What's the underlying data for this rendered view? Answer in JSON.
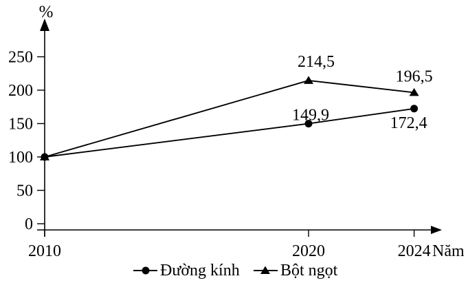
{
  "chart_data": {
    "type": "line",
    "title": "",
    "ylabel": "%",
    "xlabel": "Năm",
    "x": [
      2010,
      2020,
      2024
    ],
    "x_tick_labels": [
      "2010",
      "2020",
      "2024"
    ],
    "y_ticks": [
      0,
      50,
      100,
      150,
      200,
      250
    ],
    "ylim": [
      0,
      300
    ],
    "grid": false,
    "legend_position": "bottom",
    "series": [
      {
        "name": "Đường kính",
        "marker": "circle",
        "color": "#000000",
        "values": [
          100,
          149.9,
          172.4
        ],
        "point_labels": [
          {
            "x": 2020,
            "text": "149,9",
            "dx": 3,
            "dy": -5
          },
          {
            "x": 2024,
            "text": "172,4",
            "dx": -8,
            "dy": 28
          }
        ]
      },
      {
        "name": "Bột ngọt",
        "marker": "triangle",
        "color": "#000000",
        "values": [
          100,
          214.5,
          196.5
        ],
        "point_labels": [
          {
            "x": 2020,
            "text": "214,5",
            "dx": 11,
            "dy": -20
          },
          {
            "x": 2024,
            "text": "196,5",
            "dx": 0,
            "dy": -16
          }
        ]
      }
    ]
  }
}
